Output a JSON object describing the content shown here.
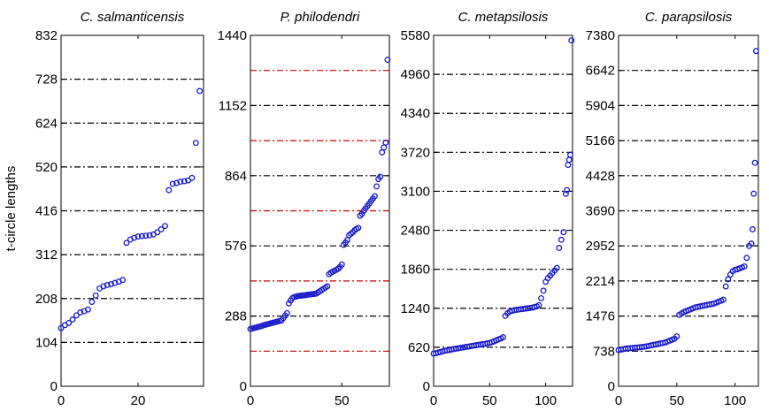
{
  "figure": {
    "ylabel": "t-circle lengths",
    "point_color": "#1a1acc",
    "grid_black": "#000000",
    "grid_red": "#cc0000"
  },
  "chart_data": [
    {
      "type": "scatter",
      "title": "C. salmanticensis",
      "xlim": [
        0,
        37
      ],
      "ylim": [
        0,
        832
      ],
      "xticks": [
        0,
        20
      ],
      "yticks": [
        0,
        104,
        208,
        312,
        416,
        520,
        624,
        728,
        832
      ],
      "grid": [
        {
          "y": 104,
          "color": "black"
        },
        {
          "y": 208,
          "color": "black"
        },
        {
          "y": 312,
          "color": "black"
        },
        {
          "y": 416,
          "color": "black"
        },
        {
          "y": 520,
          "color": "black"
        },
        {
          "y": 624,
          "color": "black"
        },
        {
          "y": 728,
          "color": "black"
        }
      ],
      "x": [
        0,
        1,
        2,
        3,
        4,
        5,
        6,
        7,
        8,
        9,
        10,
        11,
        12,
        13,
        14,
        15,
        16,
        17,
        18,
        19,
        20,
        21,
        22,
        23,
        24,
        25,
        26,
        27,
        28,
        29,
        30,
        31,
        32,
        33,
        34,
        35,
        36
      ],
      "values": [
        138,
        145,
        150,
        158,
        168,
        175,
        178,
        182,
        200,
        215,
        232,
        237,
        240,
        242,
        245,
        248,
        252,
        340,
        348,
        352,
        355,
        356,
        357,
        358,
        360,
        365,
        372,
        380,
        465,
        480,
        482,
        485,
        486,
        488,
        494,
        577,
        700
      ]
    },
    {
      "type": "scatter",
      "title": "P. philodendri",
      "xlim": [
        0,
        76
      ],
      "ylim": [
        0,
        1440
      ],
      "xticks": [
        0,
        50
      ],
      "yticks": [
        0,
        288,
        576,
        864,
        1152,
        1440
      ],
      "grid": [
        {
          "y": 144,
          "color": "red"
        },
        {
          "y": 288,
          "color": "black"
        },
        {
          "y": 432,
          "color": "red"
        },
        {
          "y": 576,
          "color": "black"
        },
        {
          "y": 720,
          "color": "red"
        },
        {
          "y": 864,
          "color": "black"
        },
        {
          "y": 1008,
          "color": "red"
        },
        {
          "y": 1152,
          "color": "black"
        },
        {
          "y": 1296,
          "color": "red"
        }
      ],
      "x": [
        0,
        1,
        2,
        3,
        4,
        5,
        6,
        7,
        8,
        9,
        10,
        11,
        12,
        13,
        14,
        15,
        16,
        17,
        18,
        19,
        20,
        21,
        22,
        23,
        24,
        25,
        26,
        27,
        28,
        29,
        30,
        31,
        32,
        33,
        34,
        35,
        36,
        37,
        38,
        39,
        40,
        41,
        42,
        43,
        44,
        45,
        46,
        47,
        48,
        49,
        50,
        51,
        52,
        53,
        54,
        55,
        56,
        57,
        58,
        59,
        60,
        61,
        62,
        63,
        64,
        65,
        66,
        67,
        68,
        69,
        70,
        71,
        72,
        73,
        74,
        75
      ],
      "values": [
        235,
        237,
        239,
        241,
        243,
        245,
        247,
        250,
        252,
        254,
        256,
        258,
        260,
        262,
        264,
        266,
        268,
        270,
        280,
        290,
        300,
        340,
        352,
        362,
        366,
        368,
        370,
        371,
        372,
        373,
        374,
        375,
        376,
        377,
        378,
        379,
        380,
        385,
        390,
        395,
        400,
        405,
        410,
        460,
        466,
        470,
        474,
        478,
        482,
        490,
        500,
        580,
        590,
        600,
        620,
        626,
        632,
        640,
        646,
        650,
        700,
        708,
        720,
        730,
        740,
        750,
        760,
        770,
        780,
        820,
        850,
        860,
        960,
        980,
        1000,
        1340
      ]
    },
    {
      "type": "scatter",
      "title": "C. metapsilosis",
      "xlim": [
        0,
        124
      ],
      "ylim": [
        0,
        5580
      ],
      "xticks": [
        0,
        50,
        100
      ],
      "yticks": [
        0,
        620,
        1240,
        1860,
        2480,
        3100,
        3720,
        4340,
        4960,
        5580
      ],
      "grid": [
        {
          "y": 620,
          "color": "black"
        },
        {
          "y": 1240,
          "color": "black"
        },
        {
          "y": 1860,
          "color": "black"
        },
        {
          "y": 2480,
          "color": "black"
        },
        {
          "y": 3100,
          "color": "black"
        },
        {
          "y": 3720,
          "color": "black"
        },
        {
          "y": 4340,
          "color": "black"
        },
        {
          "y": 4960,
          "color": "black"
        }
      ],
      "x": [
        0,
        2,
        4,
        6,
        8,
        10,
        12,
        14,
        16,
        18,
        20,
        22,
        24,
        26,
        28,
        30,
        32,
        34,
        36,
        38,
        40,
        42,
        44,
        46,
        48,
        50,
        52,
        54,
        56,
        58,
        60,
        62,
        64,
        66,
        68,
        70,
        72,
        74,
        76,
        78,
        80,
        82,
        84,
        86,
        88,
        90,
        92,
        94,
        96,
        98,
        100,
        102,
        104,
        106,
        108,
        110,
        112,
        114,
        116,
        118,
        119,
        120,
        121,
        122,
        123
      ],
      "values": [
        520,
        525,
        535,
        545,
        555,
        565,
        570,
        578,
        585,
        592,
        598,
        604,
        610,
        616,
        622,
        628,
        634,
        640,
        646,
        652,
        658,
        664,
        670,
        676,
        682,
        690,
        700,
        715,
        730,
        745,
        760,
        780,
        1120,
        1160,
        1190,
        1200,
        1210,
        1215,
        1220,
        1225,
        1230,
        1235,
        1240,
        1245,
        1250,
        1260,
        1270,
        1290,
        1400,
        1520,
        1660,
        1720,
        1760,
        1800,
        1840,
        1880,
        2200,
        2330,
        2450,
        3060,
        3120,
        3520,
        3600,
        3680,
        5500
      ]
    },
    {
      "type": "scatter",
      "title": "C. parapsilosis",
      "xlim": [
        0,
        120
      ],
      "ylim": [
        0,
        7380
      ],
      "xticks": [
        0,
        50,
        100
      ],
      "yticks": [
        0,
        738,
        1476,
        2214,
        2952,
        3690,
        4428,
        5166,
        5904,
        6642,
        7380
      ],
      "grid": [
        {
          "y": 738,
          "color": "black"
        },
        {
          "y": 1476,
          "color": "black"
        },
        {
          "y": 2214,
          "color": "black"
        },
        {
          "y": 2952,
          "color": "black"
        },
        {
          "y": 3690,
          "color": "black"
        },
        {
          "y": 4428,
          "color": "black"
        },
        {
          "y": 5166,
          "color": "black"
        },
        {
          "y": 5904,
          "color": "black"
        },
        {
          "y": 6642,
          "color": "black"
        }
      ],
      "x": [
        0,
        2,
        4,
        6,
        8,
        10,
        12,
        14,
        16,
        18,
        20,
        22,
        24,
        26,
        28,
        30,
        32,
        34,
        36,
        38,
        40,
        42,
        44,
        46,
        48,
        50,
        52,
        54,
        56,
        58,
        60,
        62,
        64,
        66,
        68,
        70,
        72,
        74,
        76,
        78,
        80,
        82,
        84,
        86,
        88,
        90,
        92,
        94,
        96,
        98,
        100,
        102,
        104,
        106,
        108,
        110,
        112,
        114,
        115,
        116,
        117,
        118
      ],
      "values": [
        760,
        770,
        780,
        790,
        795,
        800,
        805,
        810,
        815,
        820,
        825,
        830,
        840,
        850,
        860,
        870,
        880,
        890,
        900,
        910,
        920,
        940,
        960,
        980,
        1000,
        1050,
        1500,
        1530,
        1560,
        1580,
        1600,
        1620,
        1640,
        1660,
        1670,
        1680,
        1690,
        1700,
        1710,
        1720,
        1730,
        1740,
        1760,
        1780,
        1800,
        1820,
        2100,
        2250,
        2350,
        2420,
        2450,
        2460,
        2480,
        2500,
        2520,
        2700,
        2950,
        3000,
        3300,
        4050,
        4700,
        7050
      ]
    }
  ]
}
